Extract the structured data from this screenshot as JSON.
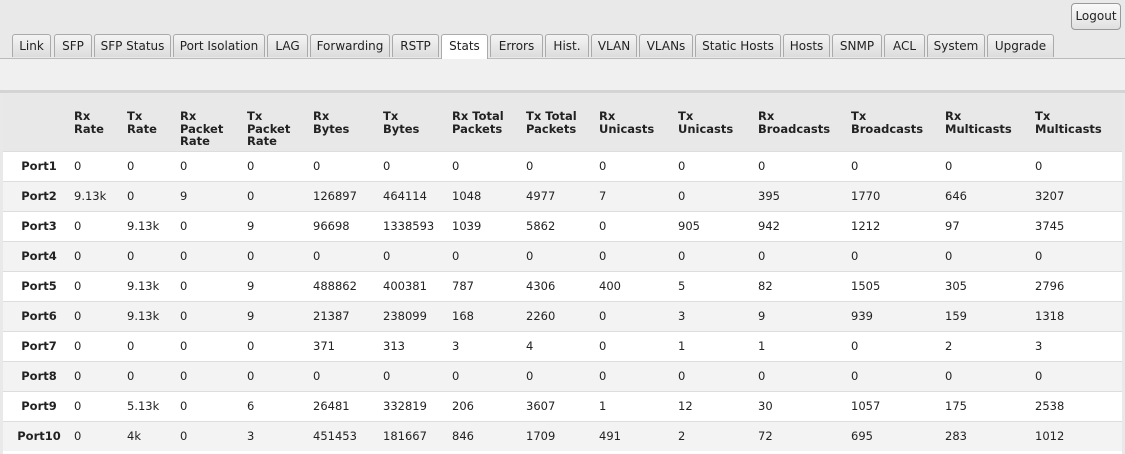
{
  "logout": "Logout",
  "tabs": [
    "Link",
    "SFP",
    "SFP Status",
    "Port Isolation",
    "LAG",
    "Forwarding",
    "RSTP",
    "Stats",
    "Errors",
    "Hist.",
    "VLAN",
    "VLANs",
    "Static Hosts",
    "Hosts",
    "SNMP",
    "ACL",
    "System",
    "Upgrade"
  ],
  "active_tab": "Stats",
  "table": {
    "headers": [
      [
        "Rx",
        "Rate"
      ],
      [
        "Tx",
        "Rate"
      ],
      [
        "Rx",
        "Packet",
        "Rate"
      ],
      [
        "Tx",
        "Packet",
        "Rate"
      ],
      [
        "Rx",
        "Bytes"
      ],
      [
        "Tx",
        "Bytes"
      ],
      [
        "Rx Total",
        "Packets"
      ],
      [
        "Tx Total",
        "Packets"
      ],
      [
        "Rx",
        "Unicasts"
      ],
      [
        "Tx",
        "Unicasts"
      ],
      [
        "Rx",
        "Broadcasts"
      ],
      [
        "Tx",
        "Broadcasts"
      ],
      [
        "Rx",
        "Multicasts"
      ],
      [
        "Tx",
        "Multicasts"
      ]
    ],
    "rows": [
      [
        "Port1",
        0,
        0,
        0,
        0,
        0,
        0,
        0,
        0,
        0,
        0,
        0,
        0,
        0,
        0
      ],
      [
        "Port2",
        "9.13k",
        0,
        9,
        0,
        126897,
        464114,
        1048,
        4977,
        7,
        0,
        395,
        1770,
        646,
        3207
      ],
      [
        "Port3",
        0,
        "9.13k",
        0,
        9,
        96698,
        1338593,
        1039,
        5862,
        0,
        905,
        942,
        1212,
        97,
        3745
      ],
      [
        "Port4",
        0,
        0,
        0,
        0,
        0,
        0,
        0,
        0,
        0,
        0,
        0,
        0,
        0,
        0
      ],
      [
        "Port5",
        0,
        "9.13k",
        0,
        9,
        488862,
        400381,
        787,
        4306,
        400,
        5,
        82,
        1505,
        305,
        2796
      ],
      [
        "Port6",
        0,
        "9.13k",
        0,
        9,
        21387,
        238099,
        168,
        2260,
        0,
        3,
        9,
        939,
        159,
        1318
      ],
      [
        "Port7",
        0,
        0,
        0,
        0,
        371,
        313,
        3,
        4,
        0,
        1,
        1,
        0,
        2,
        3
      ],
      [
        "Port8",
        0,
        0,
        0,
        0,
        0,
        0,
        0,
        0,
        0,
        0,
        0,
        0,
        0,
        0
      ],
      [
        "Port9",
        0,
        "5.13k",
        0,
        6,
        26481,
        332819,
        206,
        3607,
        1,
        12,
        30,
        1057,
        175,
        2538
      ],
      [
        "Port10",
        0,
        "4k",
        0,
        3,
        451453,
        181667,
        846,
        1709,
        491,
        2,
        72,
        695,
        283,
        1012
      ]
    ]
  }
}
